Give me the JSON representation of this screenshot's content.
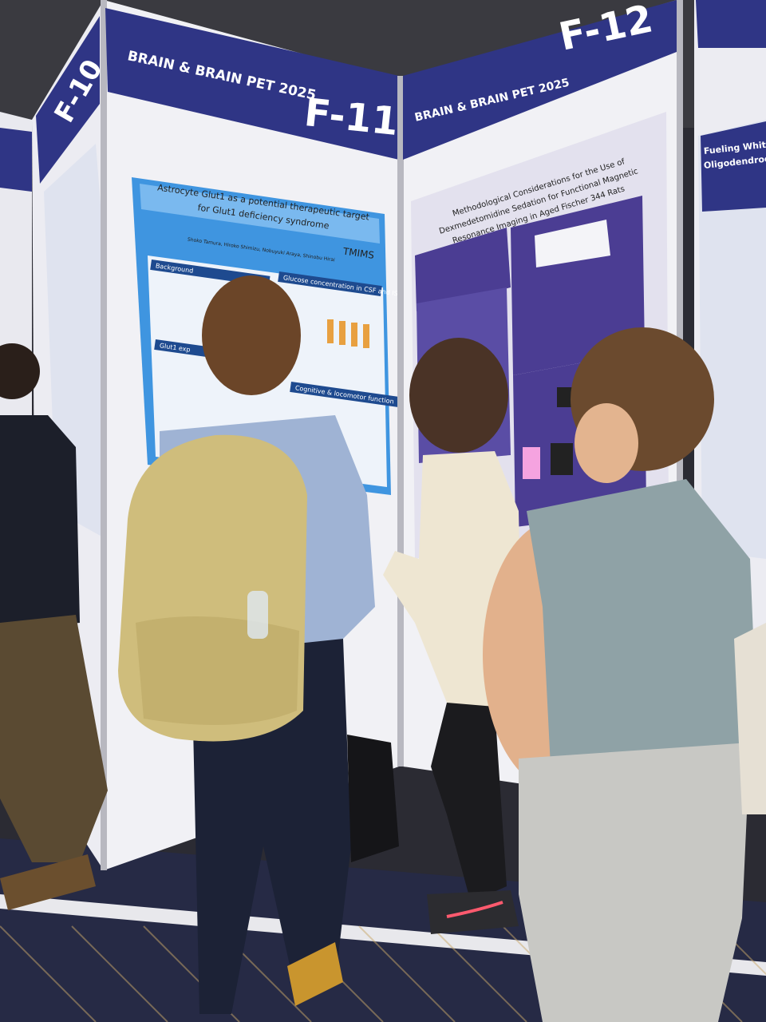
{
  "panels": [
    {
      "label": "F-10"
    },
    {
      "label": "F-11",
      "banner": "BRAIN & BRAIN PET 2025",
      "poster": {
        "title_lines": [
          "Astrocyte Glut1 as a potential therapeutic target",
          "for Glut1 deficiency syndrome"
        ],
        "authors": "Shoko Tamura, Hiroko Shimizu, Nobuyuki Araya, Shinobu Hirai",
        "logo": "TMIMS",
        "sections": [
          "Background",
          "Glucose concentration in CSF and ISF",
          "Glut1 exp",
          "Cognitive & locomotor function"
        ]
      }
    },
    {
      "label": "F-12",
      "banner": "BRAIN & BRAIN PET 2025",
      "poster": {
        "title_lines": [
          "Methodological Considerations for the Use of",
          "Dexmedetomidine Sedation for Functional Magnetic",
          "Resonance Imaging in Aged Fischer 344 Rats"
        ]
      }
    },
    {
      "poster": {
        "title_lines": [
          "Fueling White Matter: Insi",
          "Oligodendrocytes, Astrocyt"
        ]
      }
    }
  ]
}
